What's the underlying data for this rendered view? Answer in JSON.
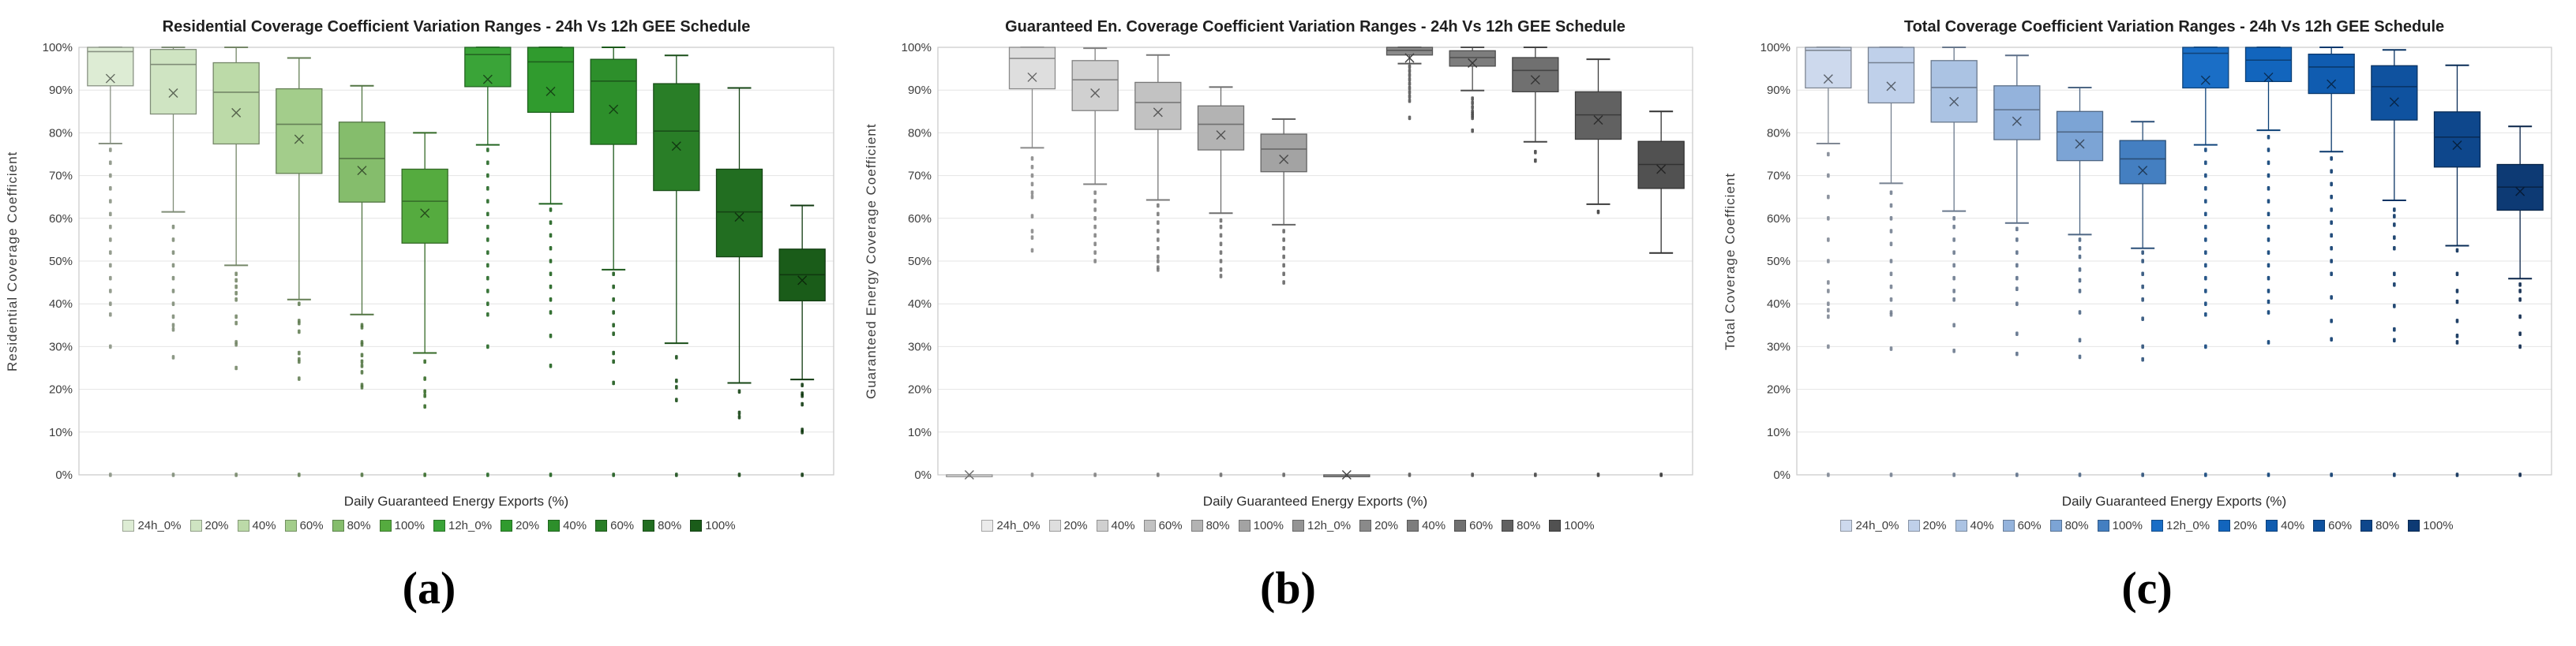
{
  "figure": {
    "xlabel": "Daily Guaranteed Energy Exports (%)",
    "yticks": [
      "0%",
      "10%",
      "20%",
      "30%",
      "40%",
      "50%",
      "60%",
      "70%",
      "80%",
      "90%",
      "100%"
    ],
    "grid_color": "#e4e4e4",
    "border_color": "#c9c9c9"
  },
  "chart_data": [
    {
      "type": "boxplot",
      "title": "Residential Coverage Coefficient Variation Ranges - 24h Vs 12h GEE Schedule",
      "ylabel": "Residential Coverage Coefficient",
      "xlabel": "Daily Guaranteed Energy Exports (%)",
      "caption": "(a)",
      "ylim": [
        0,
        100
      ],
      "yticks": [
        "0%",
        "10%",
        "20%",
        "30%",
        "40%",
        "50%",
        "60%",
        "70%",
        "80%",
        "90%",
        "100%"
      ],
      "legend_position": "bottom",
      "grid": true,
      "categories": [
        "24h_0%",
        "20%",
        "40%",
        "60%",
        "80%",
        "100%",
        "12h_0%",
        "20%",
        "40%",
        "60%",
        "80%",
        "100%"
      ],
      "palette": [
        "#ddecd4",
        "#cfe4c2",
        "#bcdaa8",
        "#a3cd8b",
        "#85bd6c",
        "#55ab3f",
        "#3aa438",
        "#309b2e",
        "#2d8f2b",
        "#297e27",
        "#226e21",
        "#1a5c19"
      ],
      "boxes": [
        {
          "label": "24h_0%",
          "min": 77.5,
          "q1": 91.0,
          "median": 99.0,
          "q3": 100,
          "max": 100,
          "mean": 92.7,
          "outliers": [
            76,
            73,
            70,
            67,
            64,
            61,
            58,
            55,
            52,
            49,
            46,
            43,
            40,
            37.5,
            30,
            0
          ]
        },
        {
          "label": "20%",
          "min": 61.5,
          "q1": 84.4,
          "median": 96.0,
          "q3": 99.5,
          "max": 100,
          "mean": 89.3,
          "outliers": [
            58,
            55,
            52,
            49,
            46,
            43,
            40,
            37,
            35,
            34,
            27.5,
            0
          ]
        },
        {
          "label": "40%",
          "min": 49.0,
          "q1": 77.4,
          "median": 89.5,
          "q3": 96.4,
          "max": 100,
          "mean": 84.7,
          "outliers": [
            47,
            45.5,
            44,
            42.5,
            41,
            37,
            35.5,
            31,
            30.5,
            25,
            0
          ]
        },
        {
          "label": "60%",
          "min": 41.0,
          "q1": 70.5,
          "median": 82.0,
          "q3": 90.3,
          "max": 97.5,
          "mean": 78.5,
          "outliers": [
            40,
            36,
            35.5,
            33.5,
            28.5,
            27,
            26.5,
            22.5,
            0
          ]
        },
        {
          "label": "80%",
          "min": 37.5,
          "q1": 63.8,
          "median": 74.0,
          "q3": 82.5,
          "max": 91.0,
          "mean": 71.2,
          "outliers": [
            35,
            34.5,
            31,
            30.5,
            28,
            26.5,
            25.5,
            24,
            21,
            20.5,
            0
          ]
        },
        {
          "label": "100%",
          "min": 28.5,
          "q1": 54.2,
          "median": 64.0,
          "q3": 71.5,
          "max": 80.0,
          "mean": 61.2,
          "outliers": [
            26.5,
            22.5,
            19.5,
            18.5,
            16,
            0
          ]
        },
        {
          "label": "12h_0%",
          "min": 77.2,
          "q1": 90.8,
          "median": 98.3,
          "q3": 100,
          "max": 100,
          "mean": 92.5,
          "outliers": [
            76,
            73,
            70,
            67,
            64,
            61,
            58,
            55,
            52,
            49,
            46,
            43,
            40,
            37.5,
            30,
            0
          ]
        },
        {
          "label": "20%",
          "min": 63.4,
          "q1": 84.8,
          "median": 96.6,
          "q3": 100,
          "max": 100,
          "mean": 89.7,
          "outliers": [
            62,
            59,
            56,
            53,
            50,
            47,
            44,
            41,
            38,
            32.5,
            25.5,
            0
          ]
        },
        {
          "label": "40%",
          "min": 48.0,
          "q1": 77.3,
          "median": 92.1,
          "q3": 97.2,
          "max": 100,
          "mean": 85.5,
          "outliers": [
            47,
            44,
            41,
            38,
            35,
            33,
            28.5,
            26.5,
            21.5,
            0
          ]
        },
        {
          "label": "60%",
          "min": 30.8,
          "q1": 66.5,
          "median": 80.4,
          "q3": 91.5,
          "max": 98.1,
          "mean": 76.9,
          "outliers": [
            27.5,
            22,
            20.5,
            17.5,
            0
          ]
        },
        {
          "label": "80%",
          "min": 21.5,
          "q1": 51.0,
          "median": 61.5,
          "q3": 71.5,
          "max": 90.5,
          "mean": 60.3,
          "outliers": [
            19.5,
            14.5,
            13.5,
            0
          ]
        },
        {
          "label": "100%",
          "min": 22.3,
          "q1": 40.7,
          "median": 46.8,
          "q3": 52.8,
          "max": 63.0,
          "mean": 45.5,
          "outliers": [
            21,
            19,
            18.5,
            16.5,
            10.5,
            10,
            0
          ]
        }
      ]
    },
    {
      "type": "boxplot",
      "title": "Guaranteed En. Coverage Coefficient Variation Ranges - 24h Vs 12h GEE Schedule",
      "ylabel": "Guaranteed Energy Coverage Coefficient",
      "xlabel": "Daily Guaranteed Energy Exports (%)",
      "caption": "(b)",
      "ylim": [
        0,
        100
      ],
      "yticks": [
        "0%",
        "10%",
        "20%",
        "30%",
        "40%",
        "50%",
        "60%",
        "70%",
        "80%",
        "90%",
        "100%"
      ],
      "legend_position": "bottom",
      "grid": true,
      "categories": [
        "24h_0%",
        "20%",
        "40%",
        "60%",
        "80%",
        "100%",
        "12h_0%",
        "20%",
        "40%",
        "60%",
        "80%",
        "100%"
      ],
      "palette": [
        "#ebebeb",
        "#dedede",
        "#d0d0d0",
        "#c2c2c2",
        "#b3b3b3",
        "#a3a3a3",
        "#949494",
        "#8a8a8a",
        "#7d7d7d",
        "#707070",
        "#616161",
        "#515151"
      ],
      "boxes": [
        {
          "label": "24h_0%",
          "min": 0,
          "q1": 0,
          "median": 0,
          "q3": 0,
          "max": 0,
          "mean": 0,
          "outliers": []
        },
        {
          "label": "20%",
          "min": 76.5,
          "q1": 90.3,
          "median": 97.4,
          "q3": 100,
          "max": 100,
          "mean": 93.0,
          "outliers": [
            74,
            72,
            70,
            68,
            66,
            65,
            60.5,
            57,
            55.5,
            52.5,
            0
          ]
        },
        {
          "label": "40%",
          "min": 68.0,
          "q1": 85.2,
          "median": 92.4,
          "q3": 96.9,
          "max": 99.8,
          "mean": 89.3,
          "outliers": [
            66,
            64,
            62,
            60,
            58,
            56,
            54,
            52,
            50,
            0
          ]
        },
        {
          "label": "60%",
          "min": 64.3,
          "q1": 80.8,
          "median": 87.1,
          "q3": 91.8,
          "max": 98.2,
          "mean": 84.8,
          "outliers": [
            63,
            61,
            59,
            57,
            55,
            53,
            51,
            50,
            48.5,
            48,
            0
          ]
        },
        {
          "label": "80%",
          "min": 61.2,
          "q1": 76.0,
          "median": 82.0,
          "q3": 86.3,
          "max": 90.7,
          "mean": 79.5,
          "outliers": [
            59.5,
            58,
            56,
            54,
            52,
            50,
            48,
            46.5,
            0
          ]
        },
        {
          "label": "100%",
          "min": 58.5,
          "q1": 70.9,
          "median": 76.2,
          "q3": 79.7,
          "max": 83.2,
          "mean": 73.8,
          "outliers": [
            57,
            55,
            53,
            51,
            49,
            47,
            45,
            0
          ]
        },
        {
          "label": "12h_0%",
          "min": 0,
          "q1": 0,
          "median": 0,
          "q3": 0,
          "max": 0,
          "mean": 0,
          "outliers": []
        },
        {
          "label": "20%",
          "min": 96.2,
          "q1": 98.2,
          "median": 99.3,
          "q3": 100,
          "max": 100,
          "mean": 97.5,
          "outliers": [
            95.5,
            94.5,
            93.5,
            92.5,
            91.5,
            90.5,
            89.5,
            88.5,
            87.5,
            83.5,
            0
          ]
        },
        {
          "label": "40%",
          "min": 89.9,
          "q1": 95.6,
          "median": 97.6,
          "q3": 99.2,
          "max": 100,
          "mean": 96.3,
          "outliers": [
            88,
            87,
            86,
            85,
            84.5,
            84,
            83.5,
            80.5,
            0
          ]
        },
        {
          "label": "60%",
          "min": 77.9,
          "q1": 89.6,
          "median": 94.6,
          "q3": 97.6,
          "max": 100,
          "mean": 92.4,
          "outliers": [
            75.5,
            73.5,
            0
          ]
        },
        {
          "label": "80%",
          "min": 63.3,
          "q1": 78.5,
          "median": 84.2,
          "q3": 89.6,
          "max": 97.2,
          "mean": 83.0,
          "outliers": [
            61.5,
            0
          ]
        },
        {
          "label": "100%",
          "min": 51.9,
          "q1": 67.0,
          "median": 72.6,
          "q3": 78.0,
          "max": 85.0,
          "mean": 71.5,
          "outliers": [
            0
          ]
        }
      ]
    },
    {
      "type": "boxplot",
      "title": "Total Coverage Coefficient Variation Ranges - 24h Vs 12h GEE Schedule",
      "ylabel": "Total Coverage Coefficient",
      "xlabel": "Daily Guaranteed Energy Exports (%)",
      "caption": "(c)",
      "ylim": [
        0,
        100
      ],
      "yticks": [
        "0%",
        "10%",
        "20%",
        "30%",
        "40%",
        "50%",
        "60%",
        "70%",
        "80%",
        "90%",
        "100%"
      ],
      "legend_position": "bottom",
      "grid": true,
      "categories": [
        "24h_0%",
        "20%",
        "40%",
        "60%",
        "80%",
        "100%",
        "12h_0%",
        "20%",
        "40%",
        "60%",
        "80%",
        "100%"
      ],
      "palette": [
        "#cdd9ed",
        "#bfd0ea",
        "#abc3e3",
        "#94b3dc",
        "#7ca4d5",
        "#447fc1",
        "#1a6ec6",
        "#1265bd",
        "#105cb0",
        "#0f529f",
        "#0e478c",
        "#0d3a74"
      ],
      "boxes": [
        {
          "label": "24h_0%",
          "min": 77.5,
          "q1": 90.5,
          "median": 99.3,
          "q3": 100,
          "max": 100,
          "mean": 92.6,
          "outliers": [
            75,
            70,
            65,
            60,
            55,
            50,
            45,
            43,
            40,
            38.5,
            37,
            30,
            0
          ]
        },
        {
          "label": "20%",
          "min": 68.2,
          "q1": 87.0,
          "median": 96.4,
          "q3": 100,
          "max": 100,
          "mean": 90.9,
          "outliers": [
            66,
            63,
            60,
            57,
            54,
            50,
            47,
            44,
            41,
            38,
            37.5,
            29.5,
            0
          ]
        },
        {
          "label": "40%",
          "min": 61.7,
          "q1": 82.5,
          "median": 90.6,
          "q3": 96.9,
          "max": 100,
          "mean": 87.3,
          "outliers": [
            60,
            58,
            55,
            52,
            49,
            46,
            43,
            41,
            35,
            29,
            0
          ]
        },
        {
          "label": "60%",
          "min": 58.9,
          "q1": 78.4,
          "median": 85.4,
          "q3": 91.0,
          "max": 98.1,
          "mean": 82.7,
          "outliers": [
            57.5,
            55,
            52,
            49,
            46,
            43.5,
            40,
            33,
            28.3,
            0
          ]
        },
        {
          "label": "80%",
          "min": 56.2,
          "q1": 73.5,
          "median": 80.2,
          "q3": 85.0,
          "max": 90.6,
          "mean": 77.4,
          "outliers": [
            55,
            53,
            51,
            48,
            45.5,
            43,
            38,
            31.5,
            27.6,
            0
          ]
        },
        {
          "label": "100%",
          "min": 53.0,
          "q1": 68.1,
          "median": 73.9,
          "q3": 78.2,
          "max": 82.6,
          "mean": 71.2,
          "outliers": [
            52,
            50,
            47,
            44,
            41,
            36.5,
            30,
            27,
            0
          ]
        },
        {
          "label": "12h_0%",
          "min": 77.2,
          "q1": 90.5,
          "median": 98.6,
          "q3": 100,
          "max": 100,
          "mean": 92.3,
          "outliers": [
            76,
            73,
            70,
            67,
            64,
            61,
            58,
            55,
            52,
            49,
            46,
            43,
            40,
            37.5,
            30,
            0
          ]
        },
        {
          "label": "20%",
          "min": 80.6,
          "q1": 92.0,
          "median": 97.0,
          "q3": 100,
          "max": 100,
          "mean": 93.0,
          "outliers": [
            79,
            76,
            73,
            70,
            67,
            64,
            61,
            58,
            55,
            52,
            49,
            46,
            43,
            40.5,
            38,
            31,
            0
          ]
        },
        {
          "label": "40%",
          "min": 75.6,
          "q1": 89.2,
          "median": 95.4,
          "q3": 98.4,
          "max": 100,
          "mean": 91.4,
          "outliers": [
            74,
            71,
            68,
            65,
            62,
            59,
            56,
            53,
            50,
            47,
            41.5,
            36,
            31.7,
            0
          ]
        },
        {
          "label": "60%",
          "min": 64.2,
          "q1": 83.0,
          "median": 90.8,
          "q3": 95.7,
          "max": 99.4,
          "mean": 87.2,
          "outliers": [
            62,
            60.5,
            58.5,
            55.5,
            53,
            47,
            44.5,
            39.5,
            34,
            31.5,
            0
          ]
        },
        {
          "label": "80%",
          "min": 53.6,
          "q1": 72.0,
          "median": 79.0,
          "q3": 84.9,
          "max": 95.8,
          "mean": 77.1,
          "outliers": [
            52.5,
            47,
            43,
            40.5,
            36,
            32.5,
            31,
            0
          ]
        },
        {
          "label": "100%",
          "min": 45.9,
          "q1": 61.9,
          "median": 67.3,
          "q3": 72.6,
          "max": 81.5,
          "mean": 66.3,
          "outliers": [
            44.5,
            43,
            41,
            37,
            33,
            30,
            0
          ]
        }
      ]
    }
  ]
}
